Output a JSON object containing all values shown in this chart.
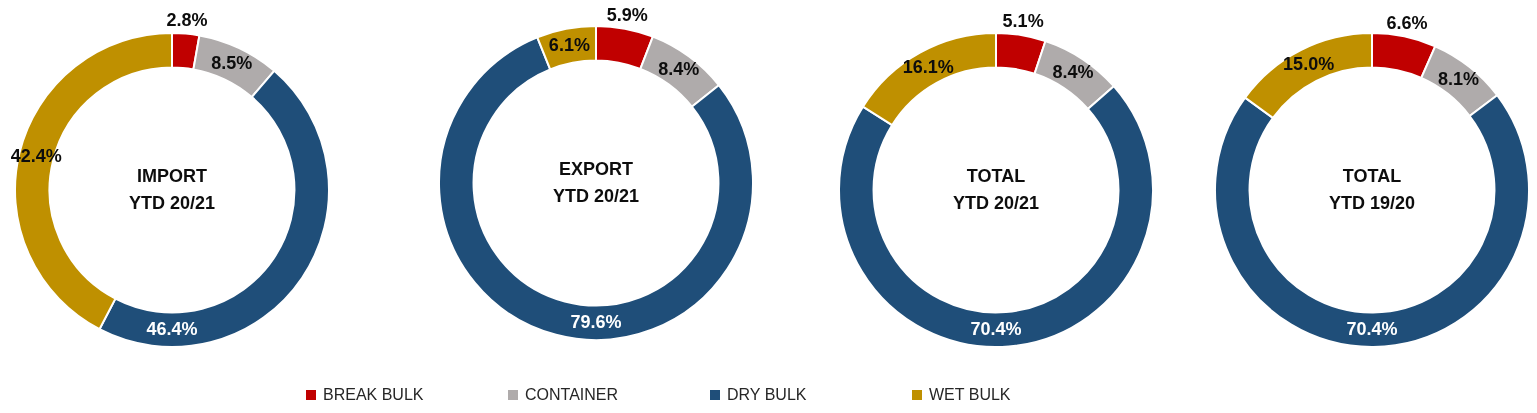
{
  "chart_data": {
    "type": "donut",
    "categories": [
      "BREAK BULK",
      "CONTAINER",
      "DRY BULK",
      "WET BULK"
    ],
    "colors": [
      "#c00000",
      "#afabab",
      "#1f4e79",
      "#bf9000"
    ],
    "legend": "bottom",
    "series": [
      {
        "name": "IMPORT YTD 20/21",
        "values": [
          2.8,
          8.5,
          46.4,
          42.4
        ],
        "value_labels": [
          "2.8%",
          "8.5%",
          "46.4%",
          "42.4%"
        ]
      },
      {
        "name": "EXPORT YTD 20/21",
        "values": [
          5.9,
          8.4,
          79.6,
          6.1
        ],
        "value_labels": [
          "5.9%",
          "8.4%",
          "79.6%",
          "6.1%"
        ]
      },
      {
        "name": "TOTAL YTD 20/21",
        "values": [
          5.1,
          8.4,
          70.4,
          16.1
        ],
        "value_labels": [
          "5.1%",
          "8.4%",
          "70.4%",
          "16.1%"
        ]
      },
      {
        "name": "TOTAL YTD 19/20",
        "values": [
          6.6,
          8.1,
          70.4,
          15.0
        ],
        "value_labels": [
          "6.6%",
          "8.1%",
          "70.4%",
          "15.0%"
        ]
      }
    ]
  }
}
